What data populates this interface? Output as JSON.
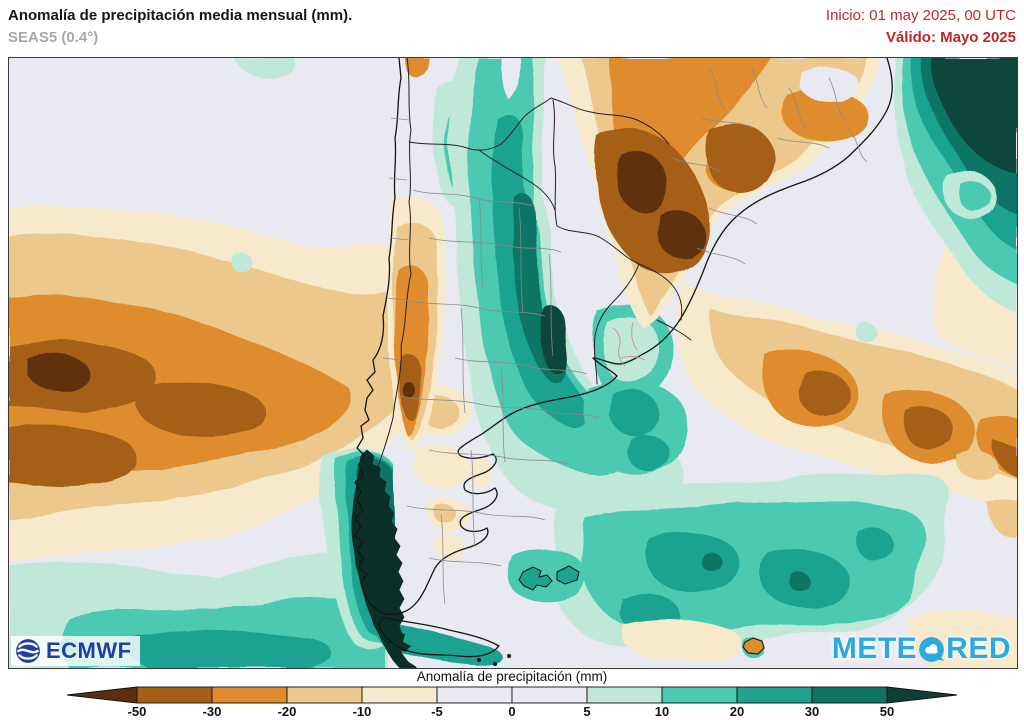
{
  "header": {
    "title": "Anomalía de precipitación media mensual (mm).",
    "subtitle": "SEAS5 (0.4°)",
    "init_label": "Inicio: 01 may 2025, 00 UTC",
    "valid_label": "Válido: Mayo 2025"
  },
  "legend": {
    "title": "Anomalía de precipitación (mm)",
    "ticks": [
      "-50",
      "-30",
      "-20",
      "-10",
      "-5",
      "0",
      "5",
      "10",
      "20",
      "30",
      "50"
    ],
    "bar_colors": [
      "#a55e16",
      "#de8c2f",
      "#ecc88c",
      "#f7e9cb",
      "#e9e9f1",
      "#e9e9f1",
      "#bfe8d9",
      "#4cc9b1",
      "#1fa290",
      "#0e7466"
    ],
    "arrow_left_color": "#5c2e0e",
    "arrow_right_color": "#0a4036"
  },
  "branding": {
    "ecmwf": "ECMWF",
    "meteored_left": "METE",
    "meteored_right": "RED"
  },
  "palette": {
    "neg5": "#5f3009",
    "neg4": "#a55e16",
    "neg3": "#de8c2f",
    "neg2": "#ecc88c",
    "neg1": "#f7e9cb",
    "zero": "#e9e9f1",
    "pos1": "#bfe8d9",
    "pos2": "#4cc9b1",
    "pos3": "#1fa290",
    "pos4": "#0e7466",
    "pos5": "#0c473b",
    "ridge": "#0a2f26",
    "red": "#c0262b",
    "ecmwf": "#2040a0",
    "meteored": "#2ba9e1"
  }
}
